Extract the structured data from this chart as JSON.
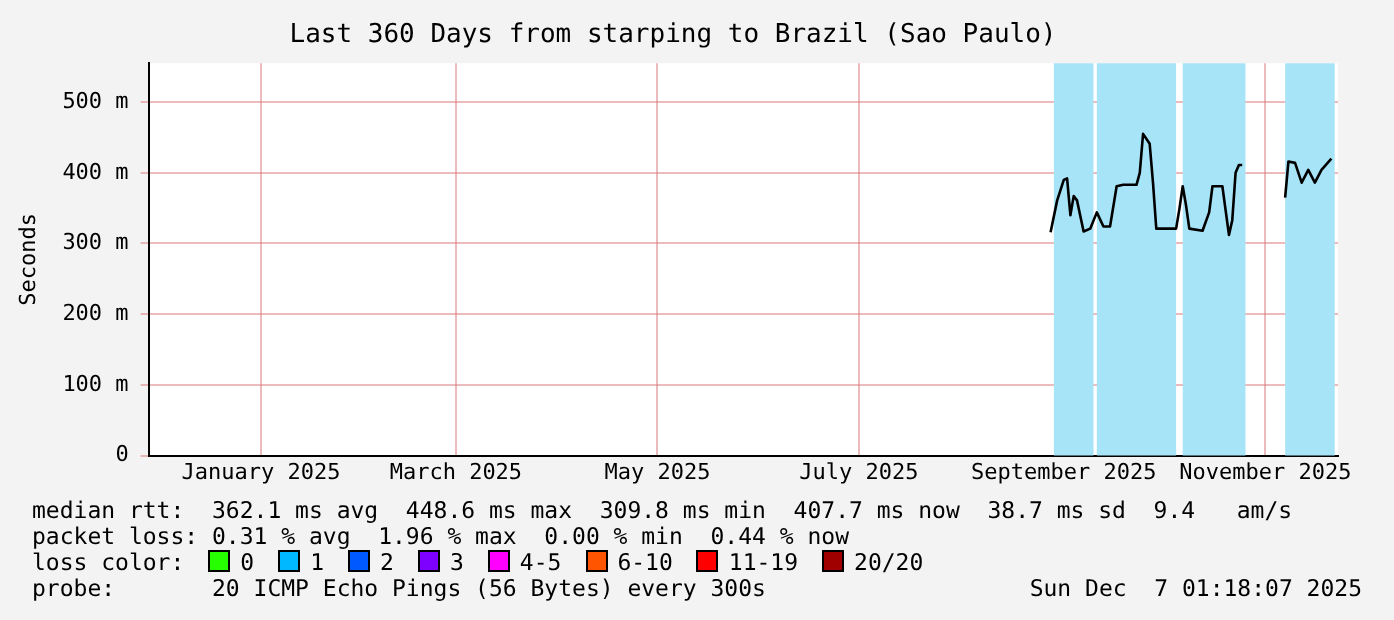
{
  "chart_data": {
    "type": "line",
    "title": "Last 360 Days from starping to Brazil (Sao Paulo)",
    "ylabel": "Seconds",
    "x": [
      "2025-09-11",
      "2025-09-13",
      "2025-09-15",
      "2025-09-16",
      "2025-09-17",
      "2025-09-18",
      "2025-09-19",
      "2025-09-21",
      "2025-09-23",
      "2025-09-25",
      "2025-09-27",
      "2025-09-29",
      "2025-10-01",
      "2025-10-03",
      "2025-10-07",
      "2025-10-08",
      "2025-10-09",
      "2025-10-11",
      "2025-10-12",
      "2025-10-13",
      "2025-10-19",
      "2025-10-20",
      "2025-10-21",
      "2025-10-22",
      "2025-10-23",
      "2025-10-27",
      "2025-10-29",
      "2025-10-30",
      "2025-11-02",
      "2025-11-04",
      "2025-11-05",
      "2025-11-06",
      "2025-11-07",
      "2025-11-08",
      "2025-11-15",
      "2025-11-21",
      "2025-11-22",
      "2025-11-24",
      "2025-11-26",
      "2025-11-28",
      "2025-11-30",
      "2025-12-02",
      "2025-12-05"
    ],
    "series": [
      {
        "color": "#000000",
        "values": [
          316,
          361,
          390,
          392,
          340,
          367,
          361,
          317,
          321,
          344,
          324,
          324,
          381,
          383,
          383,
          400,
          455,
          441,
          386,
          321,
          321,
          349,
          381,
          354,
          321,
          318,
          344,
          381,
          381,
          312,
          333,
          400,
          411,
          411,
          null,
          365,
          416,
          414,
          386,
          404,
          386,
          404,
          420
        ]
      }
    ],
    "xlim": [
      "2024-12-12",
      "2025-12-07"
    ],
    "xticks": [
      {
        "value": "2025-01-15",
        "label": "January 2025"
      },
      {
        "value": "2025-03-15",
        "label": "March 2025"
      },
      {
        "value": "2025-05-15",
        "label": "May 2025"
      },
      {
        "value": "2025-07-15",
        "label": "July 2025"
      },
      {
        "value": "2025-09-15",
        "label": "September 2025"
      },
      {
        "value": "2025-11-15",
        "label": "November 2025"
      }
    ],
    "ylim": [
      0,
      555
    ],
    "yticks": [
      0,
      {
        "value": 100,
        "label": "100 m"
      },
      {
        "value": 200,
        "label": "200 m"
      },
      {
        "value": 300,
        "label": "300 m"
      },
      {
        "value": 400,
        "label": "400 m"
      },
      {
        "value": 500,
        "label": "500 m"
      }
    ],
    "bands": [
      {
        "axis": "x",
        "from": "2025-09-12",
        "to": "2025-09-24",
        "color": "#a8e4f8"
      },
      {
        "axis": "x",
        "from": "2025-09-25",
        "to": "2025-10-19",
        "color": "#a8e4f8"
      },
      {
        "axis": "x",
        "from": "2025-10-21",
        "to": "2025-11-09",
        "color": "#a8e4f8"
      },
      {
        "axis": "x",
        "from": "2025-11-21",
        "to": "2025-12-06",
        "color": "#a8e4f8"
      }
    ],
    "grid": true,
    "legend": false,
    "marker": "none",
    "line_style": "solid",
    "annotations": [
      "median rtt:  362.1 ms avg  448.6 ms max  309.8 ms min  407.7 ms now  38.7 ms sd  9.4   am/s",
      "packet loss: 0.31 % avg  1.96 % max  0.00 % min  0.44 % now",
      "loss color:",
      "0",
      "1",
      "2",
      "3",
      "4-5",
      "6-10",
      "11-19",
      "20/20",
      "probe:       20 ICMP Echo Pings (56 Bytes) every 300s",
      "Sun Dec  7 01:18:07 2025"
    ]
  }
}
